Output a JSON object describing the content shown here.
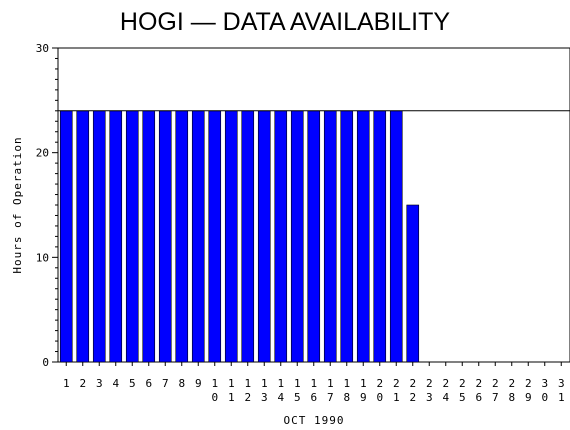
{
  "chart_data": {
    "type": "bar",
    "title": "HOGI — DATA AVAILABILITY",
    "xlabel": "OCT 1990",
    "ylabel": "Hours of Operation",
    "ylim": [
      0,
      30
    ],
    "yticks": [
      0,
      10,
      20,
      30
    ],
    "reference_line": 24,
    "bar_color": "#0000ff",
    "categories": [
      "1",
      "2",
      "3",
      "4",
      "5",
      "6",
      "7",
      "8",
      "9",
      "10",
      "11",
      "12",
      "13",
      "14",
      "15",
      "16",
      "17",
      "18",
      "19",
      "20",
      "21",
      "22",
      "23",
      "24",
      "25",
      "26",
      "27",
      "28",
      "29",
      "30",
      "31"
    ],
    "values": [
      24,
      24,
      24,
      24,
      24,
      24,
      24,
      24,
      24,
      24,
      24,
      24,
      24,
      24,
      24,
      24,
      24,
      24,
      24,
      24,
      24,
      15,
      0,
      0,
      0,
      0,
      0,
      0,
      0,
      0,
      0
    ]
  }
}
